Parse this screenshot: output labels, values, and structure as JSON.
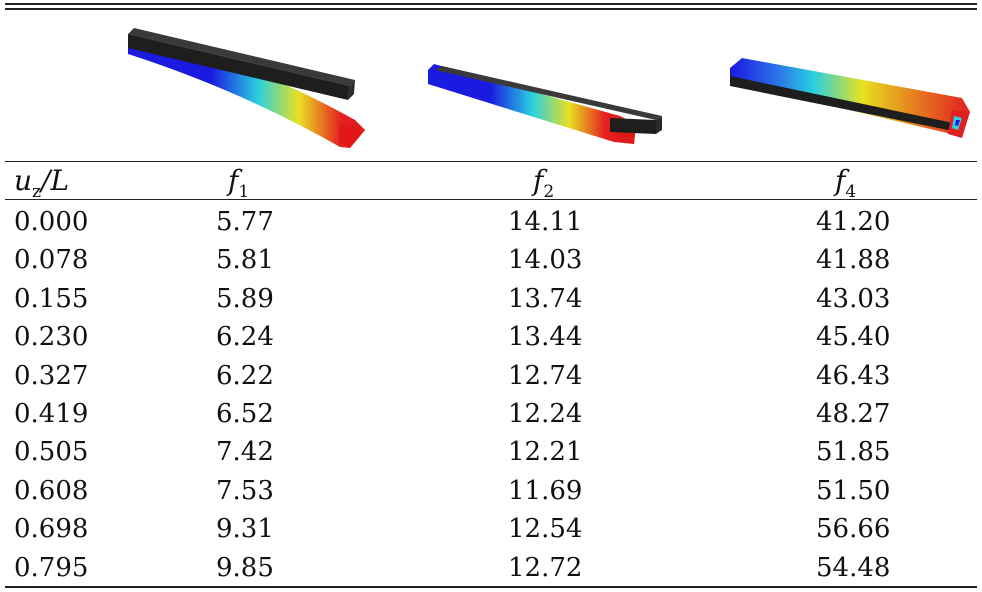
{
  "table": {
    "headers": [
      {
        "main": "u",
        "sub": "z",
        "tail": "/L"
      },
      {
        "main": "f",
        "sub": "1"
      },
      {
        "main": "f",
        "sub": "2"
      },
      {
        "main": "f",
        "sub": "4"
      }
    ],
    "rows": [
      [
        "0.000",
        "5.77",
        "14.11",
        "41.20"
      ],
      [
        "0.078",
        "5.81",
        "14.03",
        "41.88"
      ],
      [
        "0.155",
        "5.89",
        "13.74",
        "43.03"
      ],
      [
        "0.230",
        "6.24",
        "13.44",
        "45.40"
      ],
      [
        "0.327",
        "6.22",
        "12.74",
        "46.43"
      ],
      [
        "0.419",
        "6.52",
        "12.24",
        "48.27"
      ],
      [
        "0.505",
        "7.42",
        "12.21",
        "51.85"
      ],
      [
        "0.608",
        "7.53",
        "11.69",
        "51.50"
      ],
      [
        "0.698",
        "9.31",
        "12.54",
        "56.66"
      ],
      [
        "0.795",
        "9.85",
        "12.72",
        "54.48"
      ]
    ]
  },
  "figures": [
    {
      "name": "mode-shape-f1",
      "colors": [
        "#1a1ae0",
        "#2ad0e0",
        "#e8e020",
        "#e62020"
      ]
    },
    {
      "name": "mode-shape-f2",
      "colors": [
        "#1a1ae0",
        "#2ad0e0",
        "#e8e020",
        "#e62020"
      ]
    },
    {
      "name": "mode-shape-f4",
      "colors": [
        "#1a1ae0",
        "#2ad0e0",
        "#e8e020",
        "#e62020"
      ]
    }
  ]
}
